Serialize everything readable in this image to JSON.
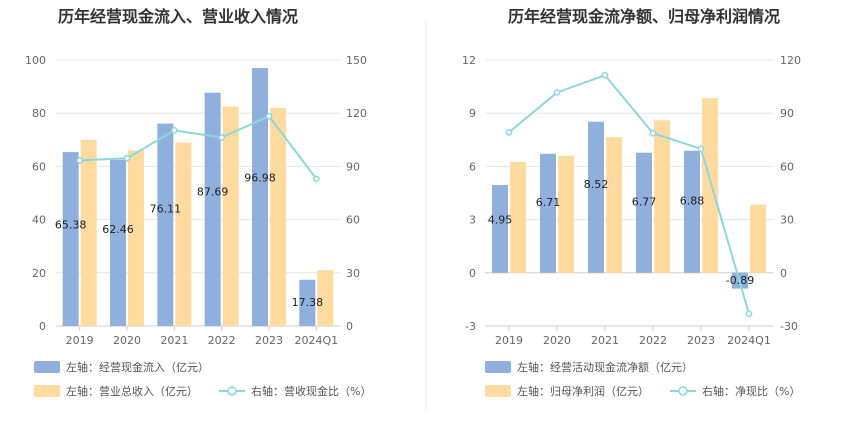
{
  "chart_data": [
    {
      "type": "bar",
      "title": "历年经营现金流入、营业收入情况",
      "categories": [
        "2019",
        "2020",
        "2021",
        "2022",
        "2023",
        "2024Q1"
      ],
      "left_axis": {
        "ticks": [
          "0",
          "20",
          "40",
          "60",
          "80",
          "100"
        ],
        "ylim": [
          0,
          100
        ]
      },
      "right_axis": {
        "ticks": [
          "0",
          "30",
          "60",
          "90",
          "120",
          "150"
        ],
        "ylim": [
          0,
          150
        ]
      },
      "series": [
        {
          "name": "左轴：经营现金流入（亿元）",
          "type": "bar",
          "axis": "left",
          "color": "#8fb0dc",
          "values": [
            65.38,
            62.46,
            76.11,
            87.69,
            96.98,
            17.38
          ],
          "labels": [
            "65.38",
            "62.46",
            "76.11",
            "87.69",
            "96.98",
            "17.38"
          ]
        },
        {
          "name": "左轴：营业总收入（亿元）",
          "type": "bar",
          "axis": "left",
          "color": "#ffdba0",
          "values": [
            70.0,
            66.0,
            69.0,
            82.5,
            82.0,
            21.0
          ]
        },
        {
          "name": "右轴：营收现金比（%）",
          "type": "line",
          "axis": "right",
          "color": "#8dd7dc",
          "values": [
            93.4,
            94.6,
            110.3,
            106.3,
            118.3,
            83.0
          ]
        }
      ]
    },
    {
      "type": "bar",
      "title": "历年经营现金流净额、归母净利润情况",
      "categories": [
        "2019",
        "2020",
        "2021",
        "2022",
        "2023",
        "2024Q1"
      ],
      "left_axis": {
        "ticks": [
          "-3",
          "0",
          "3",
          "6",
          "9",
          "12"
        ],
        "ylim": [
          -3,
          12
        ]
      },
      "right_axis": {
        "ticks": [
          "-30",
          "0",
          "30",
          "60",
          "90",
          "120"
        ],
        "ylim": [
          -30,
          120
        ]
      },
      "series": [
        {
          "name": "左轴：经营活动现金流净额（亿元）",
          "type": "bar",
          "axis": "left",
          "color": "#8fb0dc",
          "values": [
            4.95,
            6.71,
            8.52,
            6.77,
            6.88,
            -0.89
          ],
          "labels": [
            "4.95",
            "6.71",
            "8.52",
            "6.77",
            "6.88",
            "-0.89"
          ]
        },
        {
          "name": "左轴：归母净利润（亿元）",
          "type": "bar",
          "axis": "left",
          "color": "#ffdba0",
          "values": [
            6.25,
            6.6,
            7.65,
            8.6,
            9.85,
            3.85
          ]
        },
        {
          "name": "右轴：净现比（%）",
          "type": "line",
          "axis": "right",
          "color": "#8dd7dc",
          "values": [
            79.2,
            101.7,
            111.4,
            78.7,
            69.9,
            -23.1
          ]
        }
      ]
    }
  ]
}
